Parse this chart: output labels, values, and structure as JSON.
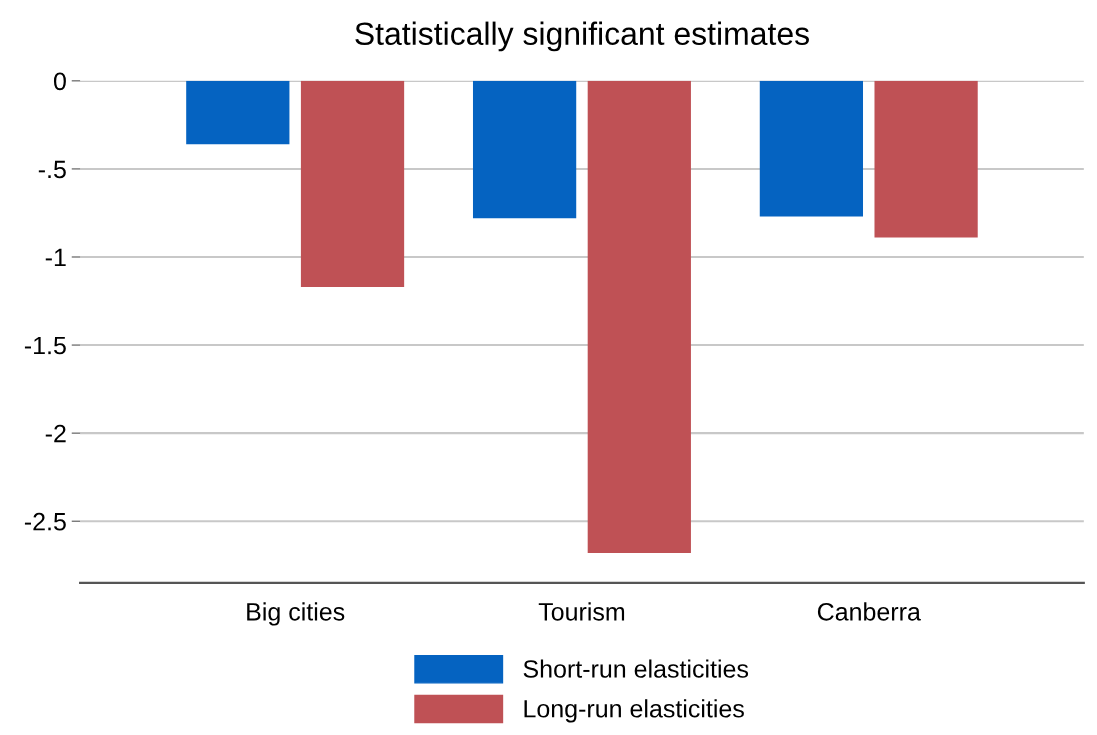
{
  "chart_data": {
    "type": "bar",
    "title": "Statistically significant estimates",
    "categories": [
      "Big cities",
      "Tourism",
      "Canberra"
    ],
    "series": [
      {
        "name": "Short-run elasticities",
        "color": "#0563c1",
        "values": [
          -0.36,
          -0.78,
          -0.77
        ]
      },
      {
        "name": "Long-run elasticities",
        "color": "#bf5155",
        "values": [
          -1.17,
          -2.68,
          -0.89
        ]
      }
    ],
    "ylim": [
      -2.85,
      0
    ],
    "yticks": [
      0,
      {
        "value": -0.5,
        "label": "-.5"
      },
      {
        "value": -1,
        "label": "-1"
      },
      {
        "value": -1.5,
        "label": "-1.5"
      },
      {
        "value": -2,
        "label": "-2"
      },
      {
        "value": -2.5,
        "label": "-2.5"
      }
    ],
    "grid": "y",
    "legend": "bottom"
  }
}
